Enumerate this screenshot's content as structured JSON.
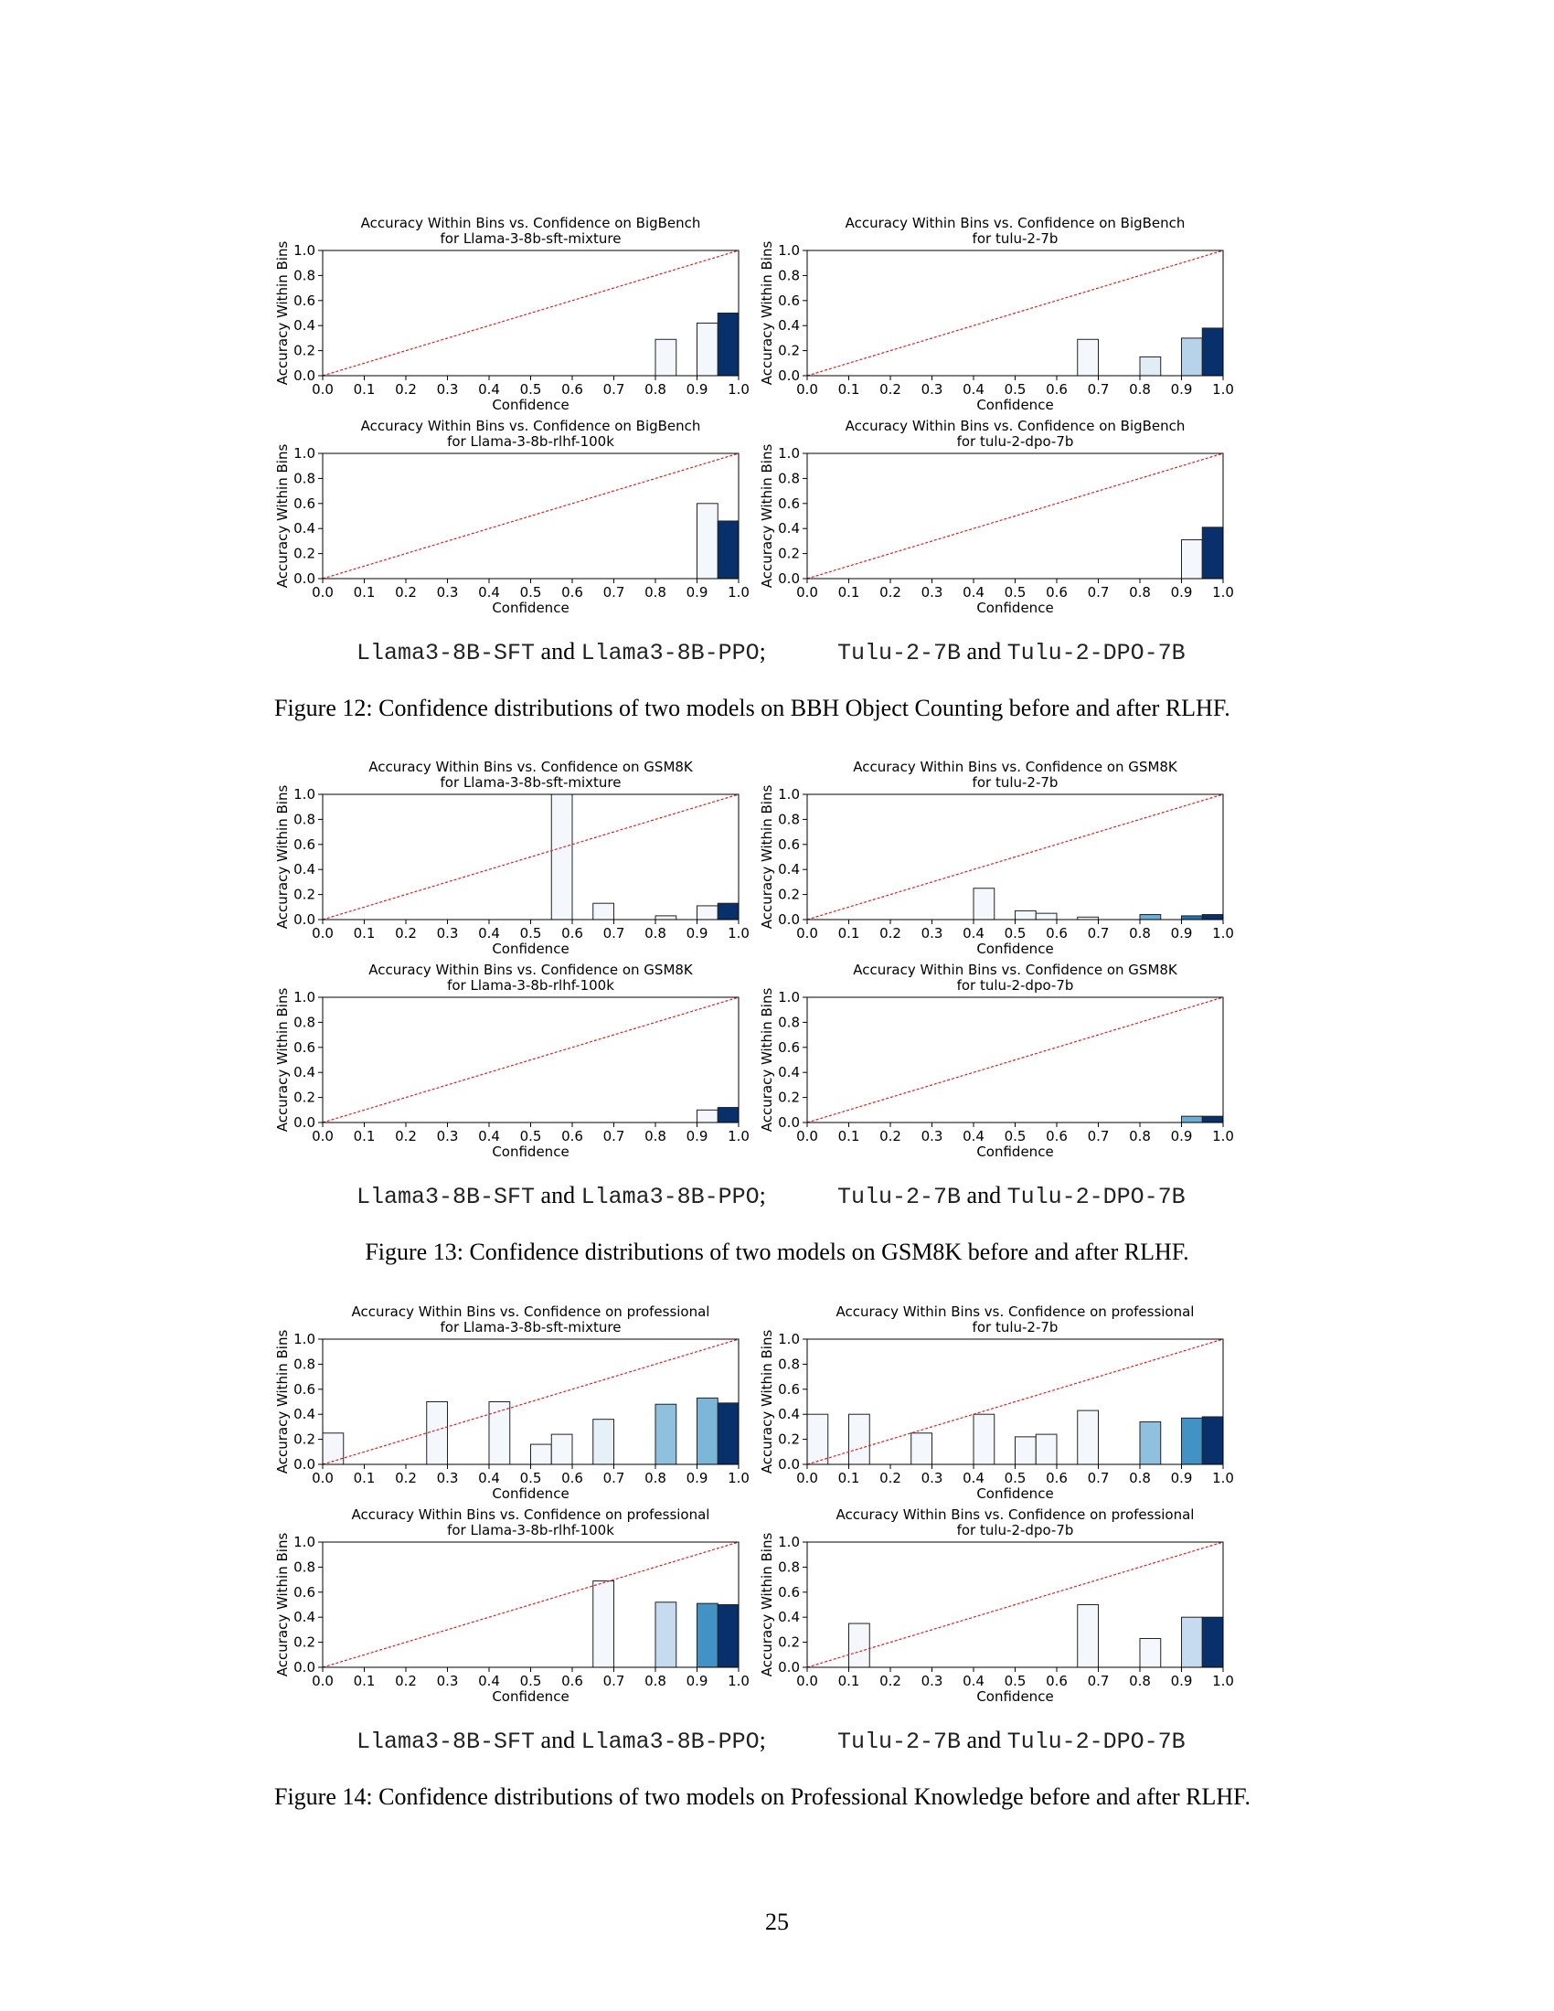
{
  "chart_data": [
    {
      "type": "bar",
      "title": "Accuracy Within Bins vs. Confidence on BigBench",
      "subtitle": "for Llama-3-8b-sft-mixture",
      "xlabel": "Confidence",
      "ylabel": "Accuracy Within Bins",
      "xlim": [
        0,
        1
      ],
      "ylim": [
        0,
        1
      ],
      "xticks": [
        "0.0",
        "0.1",
        "0.2",
        "0.3",
        "0.4",
        "0.5",
        "0.6",
        "0.7",
        "0.8",
        "0.9",
        "1.0"
      ],
      "yticks": [
        "0.0",
        "0.2",
        "0.4",
        "0.6",
        "0.8",
        "1.0"
      ],
      "bins": [
        [
          0.8,
          0.29
        ],
        [
          0.9,
          0.42
        ],
        [
          0.95,
          0.5
        ]
      ],
      "fills": [
        "#f4f8fd",
        "#f4f8fd",
        "#08306b"
      ],
      "reference_line": "y = x (red dashed)"
    },
    {
      "type": "bar",
      "title": "Accuracy Within Bins vs. Confidence on BigBench",
      "subtitle": "for tulu-2-7b",
      "xlabel": "Confidence",
      "ylabel": "Accuracy Within Bins",
      "xlim": [
        0,
        1
      ],
      "ylim": [
        0,
        1
      ],
      "xticks": [
        "0.0",
        "0.1",
        "0.2",
        "0.3",
        "0.4",
        "0.5",
        "0.6",
        "0.7",
        "0.8",
        "0.9",
        "1.0"
      ],
      "yticks": [
        "0.0",
        "0.2",
        "0.4",
        "0.6",
        "0.8",
        "1.0"
      ],
      "bins": [
        [
          0.65,
          0.29
        ],
        [
          0.8,
          0.15
        ],
        [
          0.9,
          0.3
        ],
        [
          0.95,
          0.38
        ]
      ],
      "fills": [
        "#f4f8fd",
        "#e1ecf7",
        "#b7d3ea",
        "#08306b"
      ],
      "reference_line": "y = x (red dashed)"
    },
    {
      "type": "bar",
      "title": "Accuracy Within Bins vs. Confidence on BigBench",
      "subtitle": "for Llama-3-8b-rlhf-100k",
      "xlabel": "Confidence",
      "ylabel": "Accuracy Within Bins",
      "xlim": [
        0,
        1
      ],
      "ylim": [
        0,
        1
      ],
      "xticks": [
        "0.0",
        "0.1",
        "0.2",
        "0.3",
        "0.4",
        "0.5",
        "0.6",
        "0.7",
        "0.8",
        "0.9",
        "1.0"
      ],
      "yticks": [
        "0.0",
        "0.2",
        "0.4",
        "0.6",
        "0.8",
        "1.0"
      ],
      "bins": [
        [
          0.9,
          0.6
        ],
        [
          0.95,
          0.46
        ]
      ],
      "fills": [
        "#f4f8fd",
        "#08306b"
      ],
      "reference_line": "y = x (red dashed)"
    },
    {
      "type": "bar",
      "title": "Accuracy Within Bins vs. Confidence on BigBench",
      "subtitle": "for tulu-2-dpo-7b",
      "xlabel": "Confidence",
      "ylabel": "Accuracy Within Bins",
      "xlim": [
        0,
        1
      ],
      "ylim": [
        0,
        1
      ],
      "xticks": [
        "0.0",
        "0.1",
        "0.2",
        "0.3",
        "0.4",
        "0.5",
        "0.6",
        "0.7",
        "0.8",
        "0.9",
        "1.0"
      ],
      "yticks": [
        "0.0",
        "0.2",
        "0.4",
        "0.6",
        "0.8",
        "1.0"
      ],
      "bins": [
        [
          0.9,
          0.31
        ],
        [
          0.95,
          0.41
        ]
      ],
      "fills": [
        "#f4f8fd",
        "#08306b"
      ],
      "reference_line": "y = x (red dashed)"
    },
    {
      "type": "bar",
      "title": "Accuracy Within Bins vs. Confidence on GSM8K",
      "subtitle": "for Llama-3-8b-sft-mixture",
      "xlabel": "Confidence",
      "ylabel": "Accuracy Within Bins",
      "xlim": [
        0,
        1
      ],
      "ylim": [
        0,
        1
      ],
      "xticks": [
        "0.0",
        "0.1",
        "0.2",
        "0.3",
        "0.4",
        "0.5",
        "0.6",
        "0.7",
        "0.8",
        "0.9",
        "1.0"
      ],
      "yticks": [
        "0.0",
        "0.2",
        "0.4",
        "0.6",
        "0.8",
        "1.0"
      ],
      "bins": [
        [
          0.55,
          1.0
        ],
        [
          0.65,
          0.13
        ],
        [
          0.8,
          0.03
        ],
        [
          0.9,
          0.11
        ],
        [
          0.95,
          0.13
        ]
      ],
      "fills": [
        "#f4f8fd",
        "#f4f8fd",
        "#f4f8fd",
        "#f4f8fd",
        "#08306b"
      ],
      "reference_line": "y = x (red dashed)"
    },
    {
      "type": "bar",
      "title": "Accuracy Within Bins vs. Confidence on GSM8K",
      "subtitle": "for tulu-2-7b",
      "xlabel": "Confidence",
      "ylabel": "Accuracy Within Bins",
      "xlim": [
        0,
        1
      ],
      "ylim": [
        0,
        1
      ],
      "xticks": [
        "0.0",
        "0.1",
        "0.2",
        "0.3",
        "0.4",
        "0.5",
        "0.6",
        "0.7",
        "0.8",
        "0.9",
        "1.0"
      ],
      "yticks": [
        "0.0",
        "0.2",
        "0.4",
        "0.6",
        "0.8",
        "1.0"
      ],
      "bins": [
        [
          0.4,
          0.25
        ],
        [
          0.5,
          0.07
        ],
        [
          0.55,
          0.05
        ],
        [
          0.65,
          0.02
        ],
        [
          0.8,
          0.04
        ],
        [
          0.9,
          0.03
        ],
        [
          0.95,
          0.04
        ]
      ],
      "fills": [
        "#f4f8fd",
        "#f4f8fd",
        "#f4f8fd",
        "#f4f8fd",
        "#6baed6",
        "#2171b5",
        "#08306b"
      ],
      "reference_line": "y = x (red dashed)"
    },
    {
      "type": "bar",
      "title": "Accuracy Within Bins vs. Confidence on GSM8K",
      "subtitle": "for Llama-3-8b-rlhf-100k",
      "xlabel": "Confidence",
      "ylabel": "Accuracy Within Bins",
      "xlim": [
        0,
        1
      ],
      "ylim": [
        0,
        1
      ],
      "xticks": [
        "0.0",
        "0.1",
        "0.2",
        "0.3",
        "0.4",
        "0.5",
        "0.6",
        "0.7",
        "0.8",
        "0.9",
        "1.0"
      ],
      "yticks": [
        "0.0",
        "0.2",
        "0.4",
        "0.6",
        "0.8",
        "1.0"
      ],
      "bins": [
        [
          0.9,
          0.1
        ],
        [
          0.95,
          0.12
        ]
      ],
      "fills": [
        "#f4f8fd",
        "#08306b"
      ],
      "reference_line": "y = x (red dashed)"
    },
    {
      "type": "bar",
      "title": "Accuracy Within Bins vs. Confidence on GSM8K",
      "subtitle": "for tulu-2-dpo-7b",
      "xlabel": "Confidence",
      "ylabel": "Accuracy Within Bins",
      "xlim": [
        0,
        1
      ],
      "ylim": [
        0,
        1
      ],
      "xticks": [
        "0.0",
        "0.1",
        "0.2",
        "0.3",
        "0.4",
        "0.5",
        "0.6",
        "0.7",
        "0.8",
        "0.9",
        "1.0"
      ],
      "yticks": [
        "0.0",
        "0.2",
        "0.4",
        "0.6",
        "0.8",
        "1.0"
      ],
      "bins": [
        [
          0.9,
          0.05
        ],
        [
          0.95,
          0.05
        ]
      ],
      "fills": [
        "#6baed6",
        "#08306b"
      ],
      "reference_line": "y = x (red dashed)"
    },
    {
      "type": "bar",
      "title": "Accuracy Within Bins vs. Confidence on professional",
      "subtitle": "for Llama-3-8b-sft-mixture",
      "xlabel": "Confidence",
      "ylabel": "Accuracy Within Bins",
      "xlim": [
        0,
        1
      ],
      "ylim": [
        0,
        1
      ],
      "xticks": [
        "0.0",
        "0.1",
        "0.2",
        "0.3",
        "0.4",
        "0.5",
        "0.6",
        "0.7",
        "0.8",
        "0.9",
        "1.0"
      ],
      "yticks": [
        "0.0",
        "0.2",
        "0.4",
        "0.6",
        "0.8",
        "1.0"
      ],
      "bins": [
        [
          0.0,
          0.25
        ],
        [
          0.25,
          0.5
        ],
        [
          0.4,
          0.5
        ],
        [
          0.5,
          0.16
        ],
        [
          0.55,
          0.24
        ],
        [
          0.65,
          0.36
        ],
        [
          0.8,
          0.48
        ],
        [
          0.9,
          0.53
        ],
        [
          0.95,
          0.49
        ]
      ],
      "fills": [
        "#f4f8fd",
        "#f4f8fd",
        "#f4f8fd",
        "#f4f8fd",
        "#f4f8fd",
        "#e6f0f9",
        "#8fc1de",
        "#7cb7da",
        "#08306b"
      ],
      "reference_line": "y = x (red dashed)"
    },
    {
      "type": "bar",
      "title": "Accuracy Within Bins vs. Confidence on professional",
      "subtitle": "for tulu-2-7b",
      "xlabel": "Confidence",
      "ylabel": "Accuracy Within Bins",
      "xlim": [
        0,
        1
      ],
      "ylim": [
        0,
        1
      ],
      "xticks": [
        "0.0",
        "0.1",
        "0.2",
        "0.3",
        "0.4",
        "0.5",
        "0.6",
        "0.7",
        "0.8",
        "0.9",
        "1.0"
      ],
      "yticks": [
        "0.0",
        "0.2",
        "0.4",
        "0.6",
        "0.8",
        "1.0"
      ],
      "bins": [
        [
          0.0,
          0.4
        ],
        [
          0.1,
          0.4
        ],
        [
          0.25,
          0.25
        ],
        [
          0.4,
          0.4
        ],
        [
          0.5,
          0.22
        ],
        [
          0.55,
          0.24
        ],
        [
          0.65,
          0.43
        ],
        [
          0.8,
          0.34
        ],
        [
          0.9,
          0.37
        ],
        [
          0.95,
          0.38
        ]
      ],
      "fills": [
        "#f4f8fd",
        "#f4f8fd",
        "#f4f8fd",
        "#f4f8fd",
        "#f4f8fd",
        "#f4f8fd",
        "#f4f8fd",
        "#8fc1de",
        "#4292c6",
        "#08306b"
      ],
      "reference_line": "y = x (red dashed)"
    },
    {
      "type": "bar",
      "title": "Accuracy Within Bins vs. Confidence on professional",
      "subtitle": "for Llama-3-8b-rlhf-100k",
      "xlabel": "Confidence",
      "ylabel": "Accuracy Within Bins",
      "xlim": [
        0,
        1
      ],
      "ylim": [
        0,
        1
      ],
      "xticks": [
        "0.0",
        "0.1",
        "0.2",
        "0.3",
        "0.4",
        "0.5",
        "0.6",
        "0.7",
        "0.8",
        "0.9",
        "1.0"
      ],
      "yticks": [
        "0.0",
        "0.2",
        "0.4",
        "0.6",
        "0.8",
        "1.0"
      ],
      "bins": [
        [
          0.65,
          0.69
        ],
        [
          0.8,
          0.52
        ],
        [
          0.9,
          0.51
        ],
        [
          0.95,
          0.5
        ]
      ],
      "fills": [
        "#f4f8fd",
        "#c6dbef",
        "#4292c6",
        "#08306b"
      ],
      "reference_line": "y = x (red dashed)"
    },
    {
      "type": "bar",
      "title": "Accuracy Within Bins vs. Confidence on professional",
      "subtitle": "for tulu-2-dpo-7b",
      "xlabel": "Confidence",
      "ylabel": "Accuracy Within Bins",
      "xlim": [
        0,
        1
      ],
      "ylim": [
        0,
        1
      ],
      "xticks": [
        "0.0",
        "0.1",
        "0.2",
        "0.3",
        "0.4",
        "0.5",
        "0.6",
        "0.7",
        "0.8",
        "0.9",
        "1.0"
      ],
      "yticks": [
        "0.0",
        "0.2",
        "0.4",
        "0.6",
        "0.8",
        "1.0"
      ],
      "bins": [
        [
          0.1,
          0.35
        ],
        [
          0.65,
          0.5
        ],
        [
          0.8,
          0.23
        ],
        [
          0.9,
          0.4
        ],
        [
          0.95,
          0.4
        ]
      ],
      "fills": [
        "#f4f8fd",
        "#f4f8fd",
        "#f4f8fd",
        "#c6dbef",
        "#08306b"
      ],
      "reference_line": "y = x (red dashed)"
    }
  ],
  "sublabels": {
    "llama_sft": "Llama3-8B-SFT",
    "and": "and",
    "llama_ppo": "Llama3-8B-PPO",
    "semicolon": ";",
    "tulu": "Tulu-2-7B",
    "tulu_dpo": "Tulu-2-DPO-7B"
  },
  "figures": [
    {
      "caption": "Figure 12: Confidence distributions of two models on BBH Object Counting before and after RLHF."
    },
    {
      "caption": "Figure 13: Confidence distributions of two models on GSM8K before and after RLHF."
    },
    {
      "caption": "Figure 14: Confidence distributions of two models on Professional Knowledge before and after RLHF."
    }
  ],
  "page_number": "25"
}
